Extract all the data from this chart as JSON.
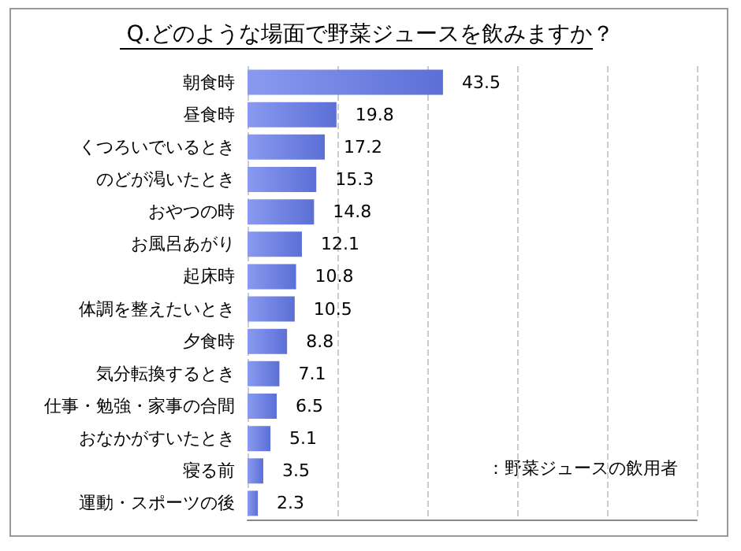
{
  "chart_data": {
    "type": "bar",
    "orientation": "horizontal",
    "title": "Q.どのような場面で野菜ジュースを飲みますか？",
    "categories": [
      "朝食時",
      "昼食時",
      "くつろいでいるとき",
      "のどが渇いたとき",
      "おやつの時",
      "お風呂あがり",
      "起床時",
      "体調を整えたいとき",
      "夕食時",
      "気分転換するとき",
      "仕事・勉強・家事の合間",
      "おなかがすいたとき",
      "寝る前",
      "運動・スポーツの後"
    ],
    "values": [
      43.5,
      19.8,
      17.2,
      15.3,
      14.8,
      12.1,
      10.8,
      10.5,
      8.8,
      7.1,
      6.5,
      5.1,
      3.5,
      2.3
    ],
    "color": "#5b6fd6",
    "xlim": [
      0,
      100
    ],
    "xticks": [
      {
        "value": 0,
        "label": null
      },
      {
        "value": 20,
        "label": null
      },
      {
        "value": 40,
        "label": null
      },
      {
        "value": 60,
        "label": null
      },
      {
        "value": 80,
        "label": null
      },
      {
        "value": 100,
        "label": null
      }
    ],
    "tick_labels": "y",
    "grid": "x",
    "data_labels": true,
    "annotations": [
      "：野菜ジュースの飲用者"
    ]
  }
}
